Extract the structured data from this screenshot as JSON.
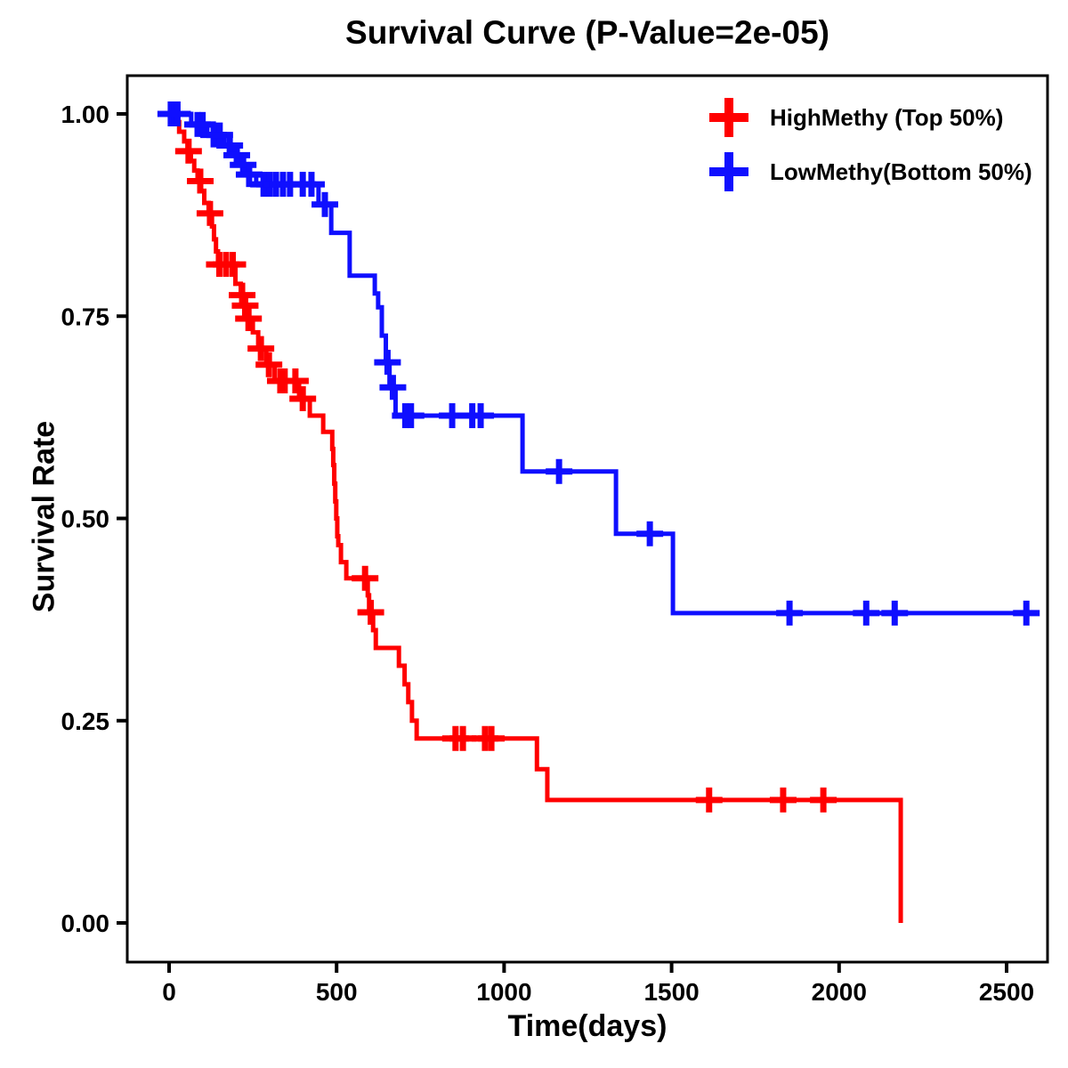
{
  "title": "Survival Curve (P-Value=2e-05)",
  "axes": {
    "x_label": "Time(days)",
    "y_label": "Survival Rate",
    "x_tick_labels": [
      "0",
      "500",
      "1000",
      "1500",
      "2000",
      "2500"
    ],
    "y_tick_labels": [
      "1.00",
      "0.75",
      "0.50",
      "0.25",
      "0.00"
    ]
  },
  "legend": {
    "items": [
      {
        "label": "HighMethy (Top 50%)",
        "color": "#ff0000"
      },
      {
        "label": "LowMethy(Bottom 50%)",
        "color": "#0f0fff"
      }
    ]
  },
  "chart_data": {
    "type": "line",
    "subtype": "kaplan-meier-step-survival",
    "title": "Survival Curve (P-Value=2e-05)",
    "p_value": "2e-05",
    "xlabel": "Time(days)",
    "ylabel": "Survival Rate",
    "xlim": [
      0,
      2622
    ],
    "ylim": [
      0,
      1.0
    ],
    "x_ticks": [
      0,
      500,
      1000,
      1500,
      2000,
      2500
    ],
    "y_ticks": [
      1.0,
      0.75,
      0.5,
      0.25,
      0.0
    ],
    "grid": false,
    "legend_position": "top-right",
    "series": [
      {
        "name": "HighMethy (Top 50%)",
        "color": "#ff0000",
        "steps": [
          [
            0,
            1.0
          ],
          [
            15,
            0.99
          ],
          [
            30,
            0.978
          ],
          [
            45,
            0.966
          ],
          [
            55,
            0.954
          ],
          [
            65,
            0.942
          ],
          [
            75,
            0.93
          ],
          [
            85,
            0.917
          ],
          [
            95,
            0.905
          ],
          [
            105,
            0.89
          ],
          [
            118,
            0.877
          ],
          [
            128,
            0.861
          ],
          [
            134,
            0.845
          ],
          [
            140,
            0.83
          ],
          [
            146,
            0.814
          ],
          [
            198,
            0.79
          ],
          [
            214,
            0.776
          ],
          [
            224,
            0.763
          ],
          [
            234,
            0.747
          ],
          [
            250,
            0.73
          ],
          [
            266,
            0.71
          ],
          [
            290,
            0.69
          ],
          [
            315,
            0.67
          ],
          [
            388,
            0.648
          ],
          [
            420,
            0.627
          ],
          [
            460,
            0.607
          ],
          [
            487,
            0.586
          ],
          [
            490,
            0.566
          ],
          [
            493,
            0.543
          ],
          [
            496,
            0.521
          ],
          [
            499,
            0.5
          ],
          [
            502,
            0.478
          ],
          [
            505,
            0.467
          ],
          [
            513,
            0.446
          ],
          [
            529,
            0.426
          ],
          [
            593,
            0.405
          ],
          [
            597,
            0.384
          ],
          [
            609,
            0.362
          ],
          [
            617,
            0.34
          ],
          [
            686,
            0.318
          ],
          [
            703,
            0.295
          ],
          [
            714,
            0.273
          ],
          [
            725,
            0.25
          ],
          [
            739,
            0.228
          ],
          [
            1098,
            0.19
          ],
          [
            1129,
            0.152
          ],
          [
            2184,
            0.0
          ]
        ],
        "censors": [
          [
            58,
            0.954
          ],
          [
            93,
            0.917
          ],
          [
            122,
            0.877
          ],
          [
            150,
            0.814
          ],
          [
            170,
            0.814
          ],
          [
            190,
            0.814
          ],
          [
            218,
            0.776
          ],
          [
            227,
            0.763
          ],
          [
            237,
            0.747
          ],
          [
            274,
            0.71
          ],
          [
            298,
            0.69
          ],
          [
            332,
            0.67
          ],
          [
            345,
            0.67
          ],
          [
            377,
            0.67
          ],
          [
            399,
            0.648
          ],
          [
            585,
            0.426
          ],
          [
            602,
            0.384
          ],
          [
            855,
            0.228
          ],
          [
            877,
            0.228
          ],
          [
            943,
            0.228
          ],
          [
            962,
            0.228
          ],
          [
            1612,
            0.152
          ],
          [
            1833,
            0.152
          ],
          [
            1953,
            0.152
          ]
        ],
        "end_time": 2184,
        "ends_at_zero": true
      },
      {
        "name": "LowMethy(Bottom 50%)",
        "color": "#0f0fff",
        "steps": [
          [
            0,
            1.0
          ],
          [
            66,
            0.987
          ],
          [
            114,
            0.974
          ],
          [
            165,
            0.961
          ],
          [
            191,
            0.949
          ],
          [
            213,
            0.937
          ],
          [
            231,
            0.925
          ],
          [
            260,
            0.913
          ],
          [
            446,
            0.888
          ],
          [
            484,
            0.853
          ],
          [
            539,
            0.8
          ],
          [
            614,
            0.778
          ],
          [
            624,
            0.761
          ],
          [
            635,
            0.726
          ],
          [
            647,
            0.693
          ],
          [
            658,
            0.662
          ],
          [
            676,
            0.627
          ],
          [
            1055,
            0.558
          ],
          [
            1334,
            0.481
          ],
          [
            1504,
            0.383
          ]
        ],
        "censors": [
          [
            5,
            1.0
          ],
          [
            15,
            1.0
          ],
          [
            25,
            1.0
          ],
          [
            85,
            0.987
          ],
          [
            100,
            0.987
          ],
          [
            133,
            0.974
          ],
          [
            151,
            0.974
          ],
          [
            181,
            0.961
          ],
          [
            202,
            0.949
          ],
          [
            221,
            0.937
          ],
          [
            239,
            0.925
          ],
          [
            282,
            0.913
          ],
          [
            300,
            0.913
          ],
          [
            319,
            0.913
          ],
          [
            340,
            0.913
          ],
          [
            361,
            0.913
          ],
          [
            399,
            0.913
          ],
          [
            425,
            0.913
          ],
          [
            465,
            0.888
          ],
          [
            652,
            0.693
          ],
          [
            668,
            0.662
          ],
          [
            705,
            0.627
          ],
          [
            722,
            0.627
          ],
          [
            845,
            0.627
          ],
          [
            905,
            0.627
          ],
          [
            930,
            0.627
          ],
          [
            1164,
            0.558
          ],
          [
            1435,
            0.481
          ],
          [
            1852,
            0.383
          ],
          [
            2081,
            0.383
          ],
          [
            2166,
            0.383
          ],
          [
            2559,
            0.383
          ]
        ],
        "end_time": 2590,
        "ends_at_zero": false
      }
    ]
  }
}
